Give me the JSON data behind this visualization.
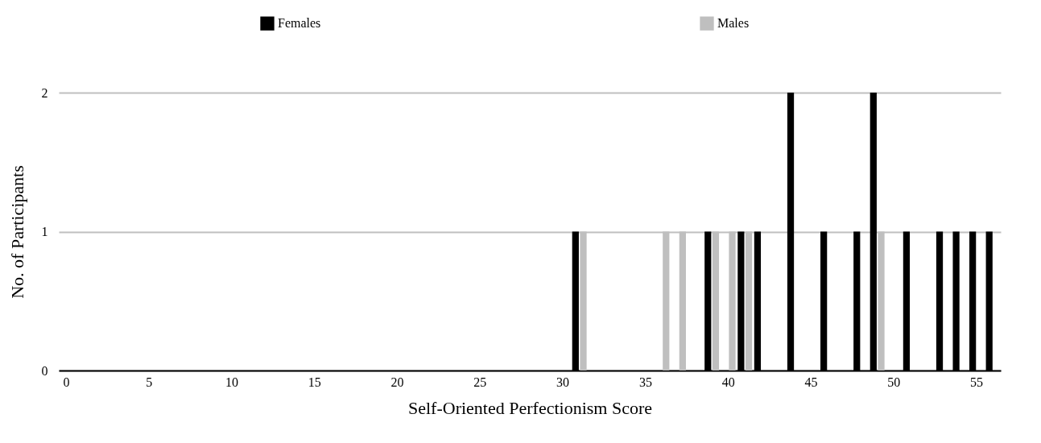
{
  "chart_data": {
    "type": "bar",
    "xlabel": "Self-Oriented Perfectionism Score",
    "ylabel": "No. of Participants",
    "categories": [
      "0",
      null,
      null,
      null,
      null,
      "5",
      null,
      null,
      null,
      null,
      "10",
      null,
      null,
      null,
      null,
      "15",
      null,
      null,
      null,
      null,
      "20",
      null,
      null,
      null,
      null,
      "25",
      null,
      null,
      null,
      null,
      "30",
      null,
      null,
      null,
      null,
      "35",
      null,
      null,
      null,
      null,
      "40",
      null,
      null,
      null,
      null,
      "45",
      null,
      null,
      null,
      null,
      "50",
      null,
      null,
      null,
      null,
      "55",
      null
    ],
    "series": [
      {
        "name": "Females",
        "color": "#000000",
        "values": [
          0,
          0,
          0,
          0,
          0,
          0,
          0,
          0,
          0,
          0,
          0,
          0,
          0,
          0,
          0,
          0,
          0,
          0,
          0,
          0,
          0,
          0,
          0,
          0,
          0,
          0,
          0,
          0,
          0,
          0,
          0,
          1,
          0,
          0,
          0,
          0,
          0,
          0,
          0,
          1,
          0,
          1,
          1,
          0,
          2,
          0,
          1,
          0,
          1,
          2,
          0,
          1,
          0,
          1,
          1,
          1,
          1
        ]
      },
      {
        "name": "Males",
        "color": "#bfbfbf",
        "values": [
          0,
          0,
          0,
          0,
          0,
          0,
          0,
          0,
          0,
          0,
          0,
          0,
          0,
          0,
          0,
          0,
          0,
          0,
          0,
          0,
          0,
          0,
          0,
          0,
          0,
          0,
          0,
          0,
          0,
          0,
          0,
          1,
          0,
          0,
          0,
          0,
          1,
          1,
          0,
          1,
          1,
          1,
          0,
          0,
          0,
          0,
          0,
          0,
          0,
          1,
          0,
          0,
          0,
          0,
          0,
          0,
          0
        ]
      }
    ],
    "ylim": [
      0,
      2
    ],
    "yticks": [
      0,
      1,
      2
    ],
    "grid": "y",
    "legend": "top"
  }
}
